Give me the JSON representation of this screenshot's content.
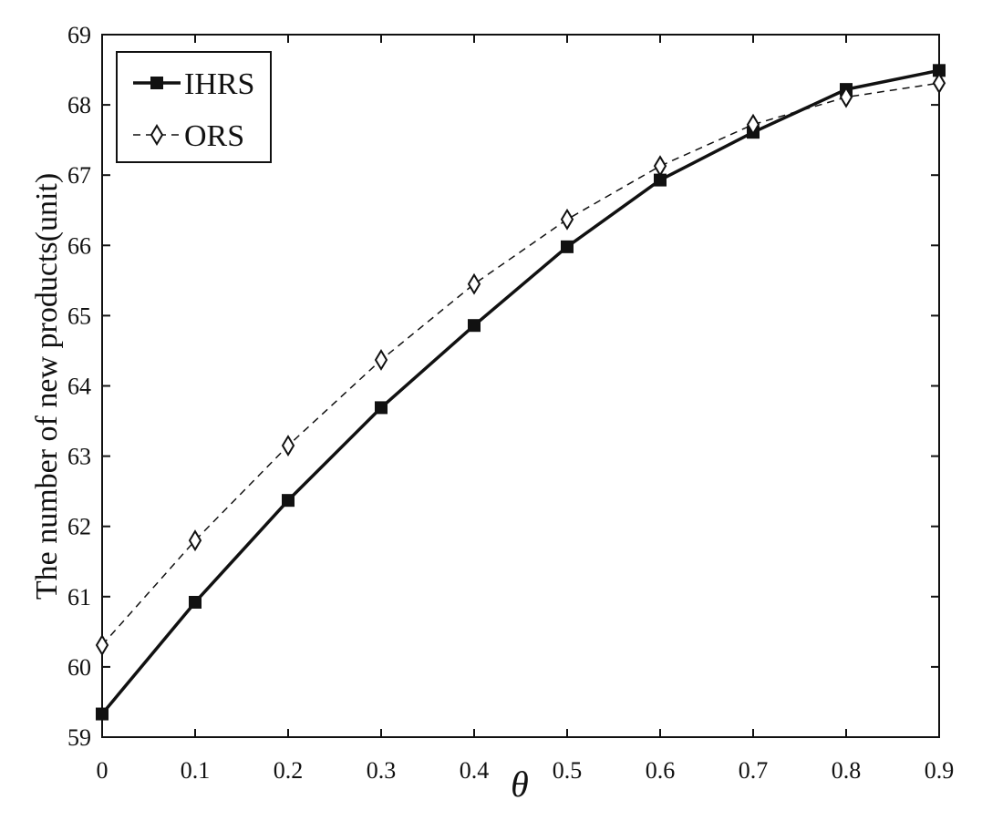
{
  "chart_data": {
    "type": "line",
    "title": "",
    "xlabel": "θ",
    "ylabel": "The number of new products(unit)",
    "x": [
      0,
      0.1,
      0.2,
      0.3,
      0.4,
      0.5,
      0.6,
      0.7,
      0.8,
      0.9
    ],
    "x_tick_labels": [
      "0",
      "0.1",
      "0.2",
      "0.3",
      "0.4",
      "0.5",
      "0.6",
      "0.7",
      "0.8",
      "0.9"
    ],
    "y_ticks": [
      59,
      60,
      61,
      62,
      63,
      64,
      65,
      66,
      67,
      68,
      69
    ],
    "xlim": [
      0,
      0.9
    ],
    "ylim": [
      59,
      69
    ],
    "grid": false,
    "legend": "top-left",
    "series": [
      {
        "name": "IHRS",
        "marker": "filled-square",
        "line": "solid",
        "color": "#111111",
        "values": [
          59.33,
          60.92,
          62.37,
          63.69,
          64.86,
          65.98,
          66.93,
          67.61,
          68.22,
          68.49
        ]
      },
      {
        "name": "ORS",
        "marker": "open-diamond",
        "line": "dashed",
        "color": "#111111",
        "values": [
          60.31,
          61.8,
          63.15,
          64.37,
          65.45,
          66.37,
          67.13,
          67.72,
          68.11,
          68.31
        ]
      }
    ]
  }
}
